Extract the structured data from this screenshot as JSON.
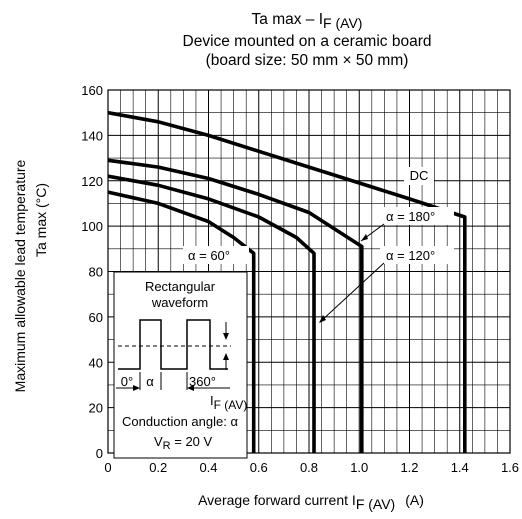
{
  "chart_data": {
    "type": "line",
    "title": {
      "line1_main": "Ta max – I",
      "line1_sub": "F (AV)",
      "line2": "Device mounted on a ceramic board",
      "line3": "(board size: 50 mm × 50 mm)"
    },
    "xlabel": {
      "main": "Average forward current  I",
      "sub": "F (AV)",
      "unit": "(A)"
    },
    "ylabel": {
      "line1": "Maximum allowable lead temperature",
      "line2": "Ta max    (°C)"
    },
    "xlim": [
      0,
      1.6
    ],
    "ylim": [
      0,
      160
    ],
    "x_major_ticks": [
      "0",
      "0.2",
      "0.4",
      "0.6",
      "0.8",
      "1.0",
      "1.2",
      "1.4",
      "1.6"
    ],
    "y_major_ticks": [
      "0",
      "20",
      "40",
      "60",
      "80",
      "100",
      "120",
      "140",
      "160"
    ],
    "grid": true,
    "series": [
      {
        "name": "DC",
        "points": [
          [
            0,
            150
          ],
          [
            0.2,
            146
          ],
          [
            0.4,
            140
          ],
          [
            0.6,
            133
          ],
          [
            0.8,
            126
          ],
          [
            1.0,
            119
          ],
          [
            1.2,
            112
          ],
          [
            1.42,
            104
          ],
          [
            1.42,
            0
          ]
        ]
      },
      {
        "name": "α = 180°",
        "points": [
          [
            0,
            129
          ],
          [
            0.2,
            126
          ],
          [
            0.4,
            121
          ],
          [
            0.6,
            114
          ],
          [
            0.8,
            106
          ],
          [
            1.01,
            91
          ],
          [
            1.01,
            0
          ]
        ]
      },
      {
        "name": "α = 120°",
        "points": [
          [
            0,
            122
          ],
          [
            0.2,
            118
          ],
          [
            0.4,
            112
          ],
          [
            0.6,
            104
          ],
          [
            0.75,
            95
          ],
          [
            0.82,
            88
          ],
          [
            0.82,
            0
          ]
        ]
      },
      {
        "name": "α = 60°",
        "points": [
          [
            0,
            115
          ],
          [
            0.2,
            110
          ],
          [
            0.4,
            102
          ],
          [
            0.5,
            95
          ],
          [
            0.58,
            88
          ],
          [
            0.58,
            0
          ]
        ]
      }
    ],
    "labels": {
      "dc": "DC",
      "a180": "α = 180°",
      "a120": "α = 120°",
      "a60": "α = 60°"
    },
    "inset": {
      "line1": "Rectangular",
      "line2": "waveform",
      "deg0": "0°",
      "alpha": "α",
      "deg360": "360°",
      "if_main": "I",
      "if_sub": "F (AV)",
      "conduction": "Conduction angle: α",
      "vr_main": "V",
      "vr_sub": "R",
      "vr_value": " = 20 V"
    }
  }
}
